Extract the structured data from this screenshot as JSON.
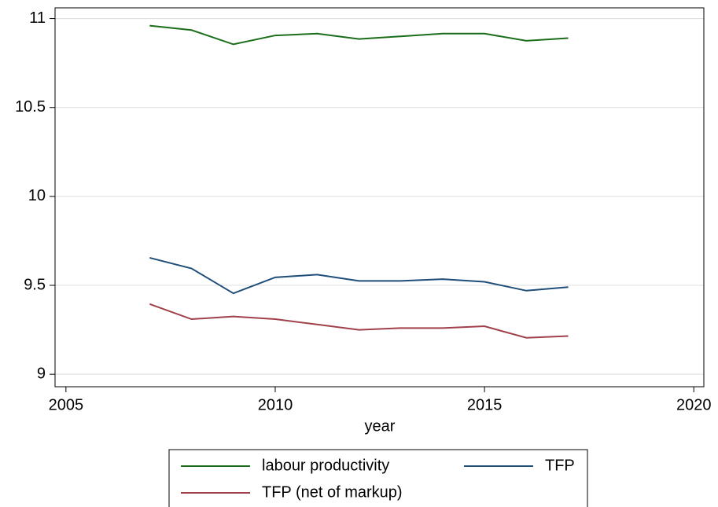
{
  "chart_data": {
    "type": "line",
    "x_label": "year",
    "x": [
      2007,
      2008,
      2009,
      2010,
      2011,
      2012,
      2013,
      2014,
      2015,
      2016,
      2017
    ],
    "series": [
      {
        "name": "labour productivity",
        "color": "#1a6e1a",
        "values": [
          10.96,
          10.935,
          10.855,
          10.905,
          10.915,
          10.885,
          10.9,
          10.915,
          10.915,
          10.875,
          10.89
        ]
      },
      {
        "name": "TFP",
        "color": "#1f4e79",
        "values": [
          9.655,
          9.595,
          9.455,
          9.545,
          9.56,
          9.525,
          9.525,
          9.535,
          9.52,
          9.47,
          9.49
        ]
      },
      {
        "name": "TFP (net of markup)",
        "color": "#a0404a",
        "values": [
          9.395,
          9.31,
          9.325,
          9.31,
          9.28,
          9.25,
          9.26,
          9.26,
          9.27,
          9.205,
          9.215
        ]
      }
    ],
    "xlim": [
      2004.74,
      2020.24
    ],
    "xticks": [
      2005,
      2010,
      2015,
      2020
    ],
    "ylim": [
      8.93,
      11.06
    ],
    "yticks": [
      9,
      9.5,
      10,
      10.5,
      11
    ],
    "grid": true,
    "legend": "bottom"
  }
}
